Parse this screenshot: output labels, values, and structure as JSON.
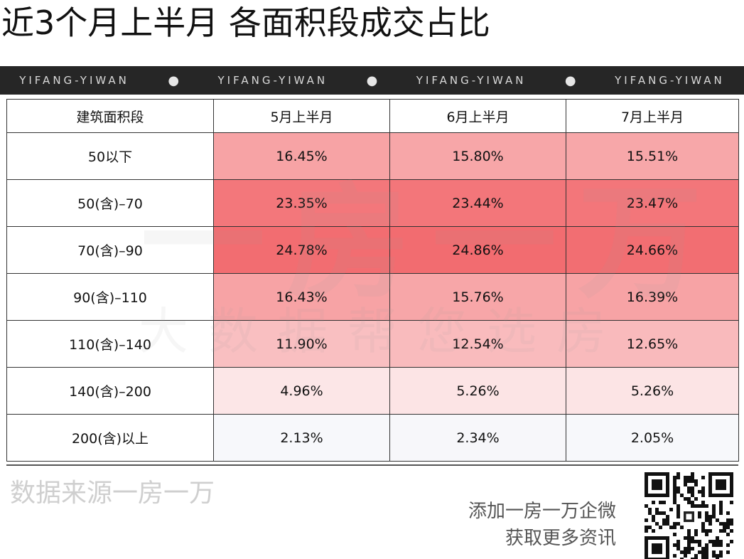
{
  "title": "近3个月上半月 各面积段成交占比",
  "banner": {
    "items": [
      "YIFANG-YIWAN",
      "YIFANG-YIWAN",
      "YIFANG-YIWAN",
      "YIFANG-YIWAN"
    ],
    "separator": "●"
  },
  "watermark": {
    "main": "一房一万",
    "sub": "大数据帮您选房"
  },
  "table": {
    "headers": [
      "建筑面积段",
      "5月上半月",
      "6月上半月",
      "7月上半月"
    ],
    "rows": [
      {
        "label": "50以下",
        "cells": [
          {
            "text": "16.45%",
            "color": "#f7a3a5"
          },
          {
            "text": "15.80%",
            "color": "#f7a6a8"
          },
          {
            "text": "15.51%",
            "color": "#f7a7a9"
          }
        ]
      },
      {
        "label": "50(含)–70",
        "cells": [
          {
            "text": "23.35%",
            "color": "#f3777b"
          },
          {
            "text": "23.44%",
            "color": "#f3767a"
          },
          {
            "text": "23.47%",
            "color": "#f3767a"
          }
        ]
      },
      {
        "label": "70(含)–90",
        "cells": [
          {
            "text": "24.78%",
            "color": "#f26d71"
          },
          {
            "text": "24.86%",
            "color": "#f26c70"
          },
          {
            "text": "24.66%",
            "color": "#f26e72"
          }
        ]
      },
      {
        "label": "90(含)–110",
        "cells": [
          {
            "text": "16.43%",
            "color": "#f7a3a5"
          },
          {
            "text": "15.76%",
            "color": "#f7a6a8"
          },
          {
            "text": "16.39%",
            "color": "#f7a3a5"
          }
        ]
      },
      {
        "label": "110(含)–140",
        "cells": [
          {
            "text": "11.90%",
            "color": "#f9bfc1"
          },
          {
            "text": "12.54%",
            "color": "#f9bbbd"
          },
          {
            "text": "12.65%",
            "color": "#f9babc"
          }
        ]
      },
      {
        "label": "140(含)–200",
        "cells": [
          {
            "text": "4.96%",
            "color": "#fce6e7"
          },
          {
            "text": "5.26%",
            "color": "#fce4e5"
          },
          {
            "text": "5.26%",
            "color": "#fce4e5"
          }
        ]
      },
      {
        "label": "200(含)以上",
        "cells": [
          {
            "text": "2.13%",
            "color": "#f7f8fb"
          },
          {
            "text": "2.34%",
            "color": "#f7f7fa"
          },
          {
            "text": "2.05%",
            "color": "#f7f8fb"
          }
        ]
      }
    ]
  },
  "footer": {
    "source": "数据来源一房一万",
    "promo_line1": "添加一房一万企微",
    "promo_line2": "获取更多资讯"
  }
}
